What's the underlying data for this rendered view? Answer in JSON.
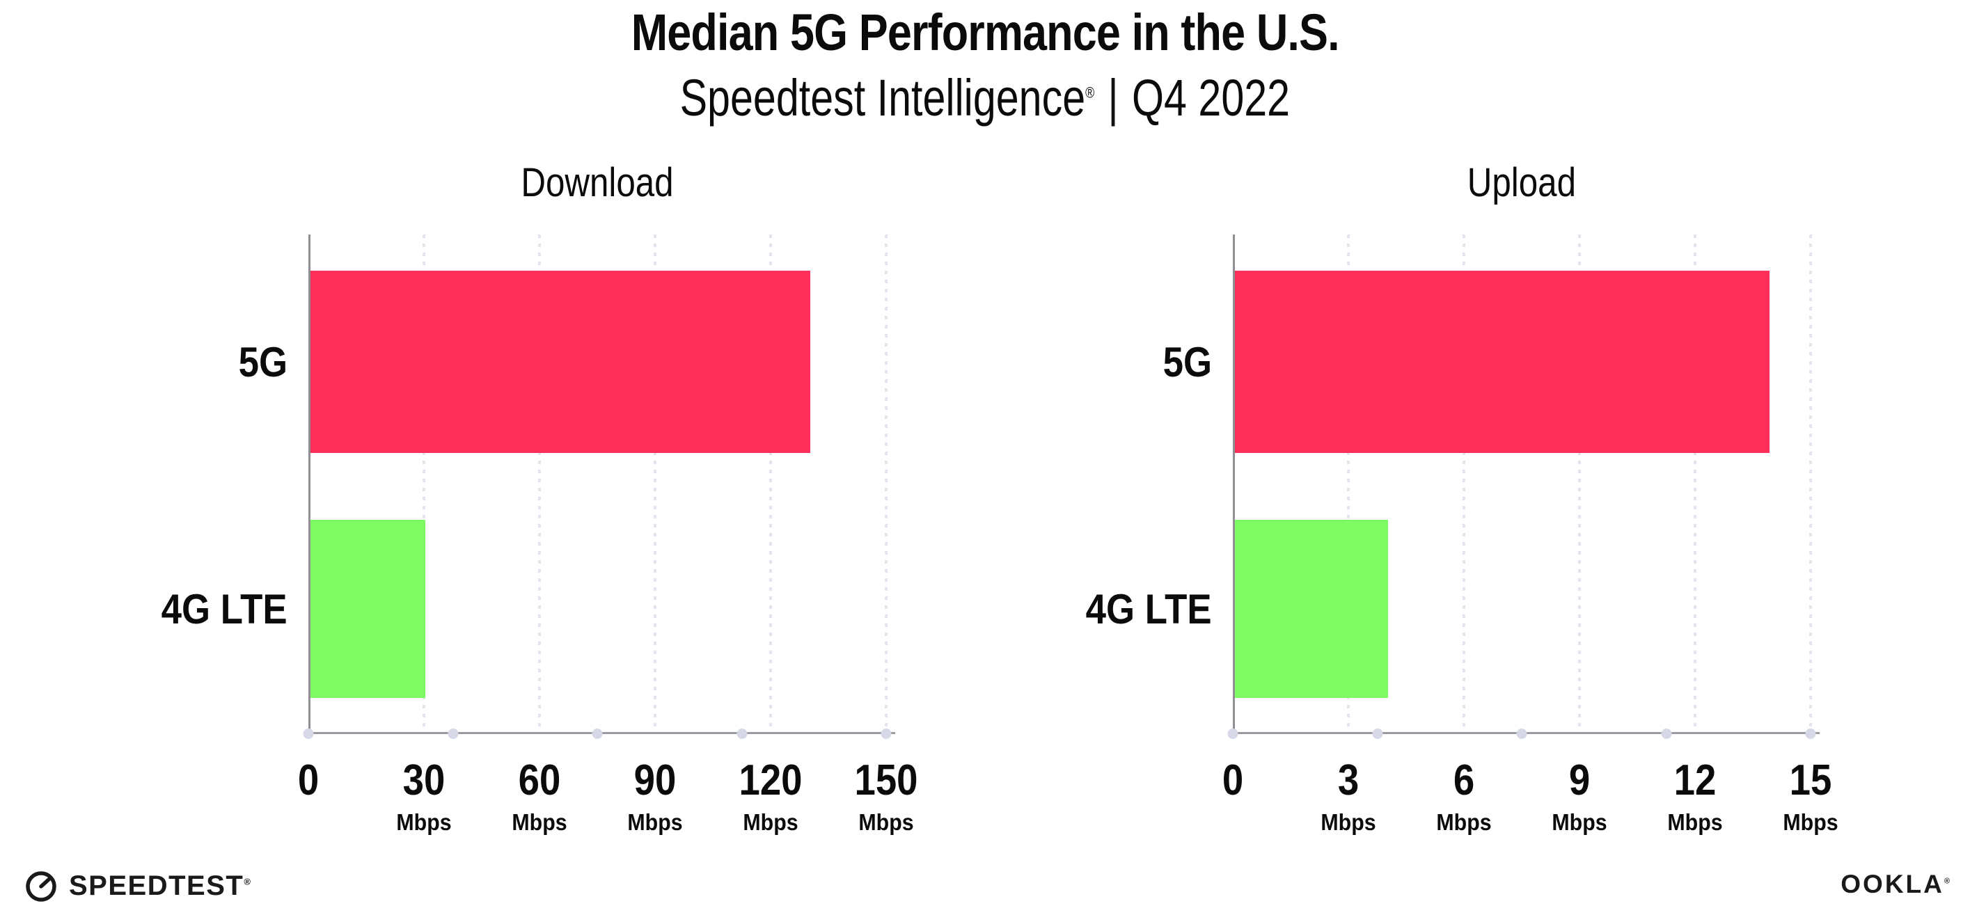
{
  "header": {
    "title": "Median 5G Performance in the U.S.",
    "subtitle_brand": "Speedtest Intelligence",
    "subtitle_reg": "®",
    "subtitle_separator": "|",
    "subtitle_period": "Q4 2022"
  },
  "chart_data": [
    {
      "type": "bar",
      "orientation": "horizontal",
      "title": "Download",
      "categories": [
        "5G",
        "4G LTE"
      ],
      "values": [
        130,
        30
      ],
      "unit": "Mbps",
      "xlabel": "",
      "ylabel": "",
      "xlim": [
        0,
        150
      ],
      "ticks": [
        0,
        30,
        60,
        90,
        120,
        150
      ],
      "bar_colors": [
        "#FF2E5B",
        "#7FFC64"
      ],
      "grid": "dotted vertical gridlines at each tick",
      "legend": "none"
    },
    {
      "type": "bar",
      "orientation": "horizontal",
      "title": "Upload",
      "categories": [
        "5G",
        "4G LTE"
      ],
      "values": [
        13.9,
        4
      ],
      "unit": "Mbps",
      "xlabel": "",
      "ylabel": "",
      "xlim": [
        0,
        15
      ],
      "ticks": [
        0,
        3,
        6,
        9,
        12,
        15
      ],
      "bar_colors": [
        "#FF2E5B",
        "#7FFC64"
      ],
      "grid": "dotted vertical gridlines at each tick",
      "legend": "none"
    }
  ],
  "footer": {
    "speedtest_label": "SPEEDTEST",
    "speedtest_reg": "®",
    "ookla_label": "OOKLA",
    "ookla_reg": "®"
  },
  "colors": {
    "bar_5g": "#FF2E5B",
    "bar_4g_lte": "#7FFC64",
    "gridline": "#E3E4F0",
    "axis": "#8F8F94",
    "axis_dot": "#D6D8E7",
    "text": "#0B0B0B",
    "background": "#FFFFFF"
  }
}
